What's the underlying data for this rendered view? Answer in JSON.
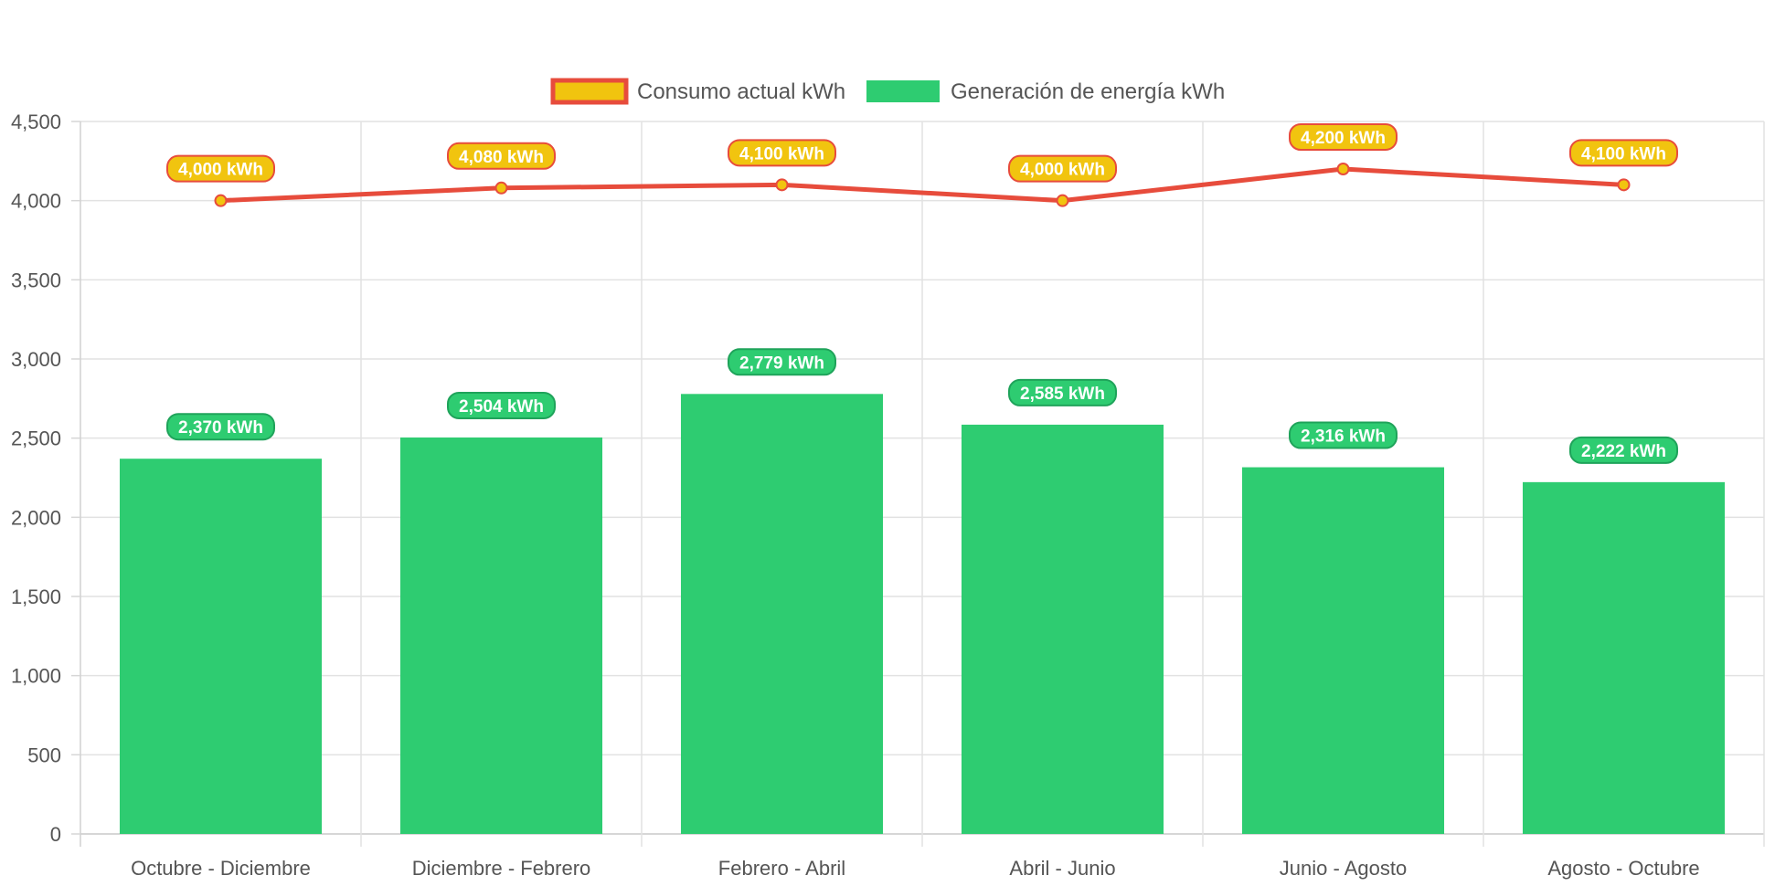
{
  "chart_data": {
    "type": "bar",
    "categories": [
      "Octubre - Diciembre",
      "Diciembre - Febrero",
      "Febrero - Abril",
      "Abril - Junio",
      "Junio - Agosto",
      "Agosto - Octubre"
    ],
    "series": [
      {
        "name": "Consumo actual kWh",
        "type": "line",
        "values": [
          4000,
          4080,
          4100,
          4000,
          4200,
          4100
        ],
        "labels": [
          "4,000 kWh",
          "4,080 kWh",
          "4,100 kWh",
          "4,000 kWh",
          "4,200 kWh",
          "4,100 kWh"
        ],
        "color": "#e74c3c",
        "point_color": "#f1c40f"
      },
      {
        "name": "Generación de energía kWh",
        "type": "bar",
        "values": [
          2370,
          2504,
          2779,
          2585,
          2316,
          2222
        ],
        "labels": [
          "2,370 kWh",
          "2,504 kWh",
          "2,779 kWh",
          "2,585 kWh",
          "2,316 kWh",
          "2,222 kWh"
        ],
        "color": "#2ecc71"
      }
    ],
    "ylim": [
      0,
      4500
    ],
    "yticks": [
      "0",
      "500",
      "1,000",
      "1,500",
      "2,000",
      "2,500",
      "3,000",
      "3,500",
      "4,000",
      "4,500"
    ],
    "ytick_values": [
      0,
      500,
      1000,
      1500,
      2000,
      2500,
      3000,
      3500,
      4000,
      4500
    ],
    "grid": true,
    "legend_position": "top-center"
  }
}
